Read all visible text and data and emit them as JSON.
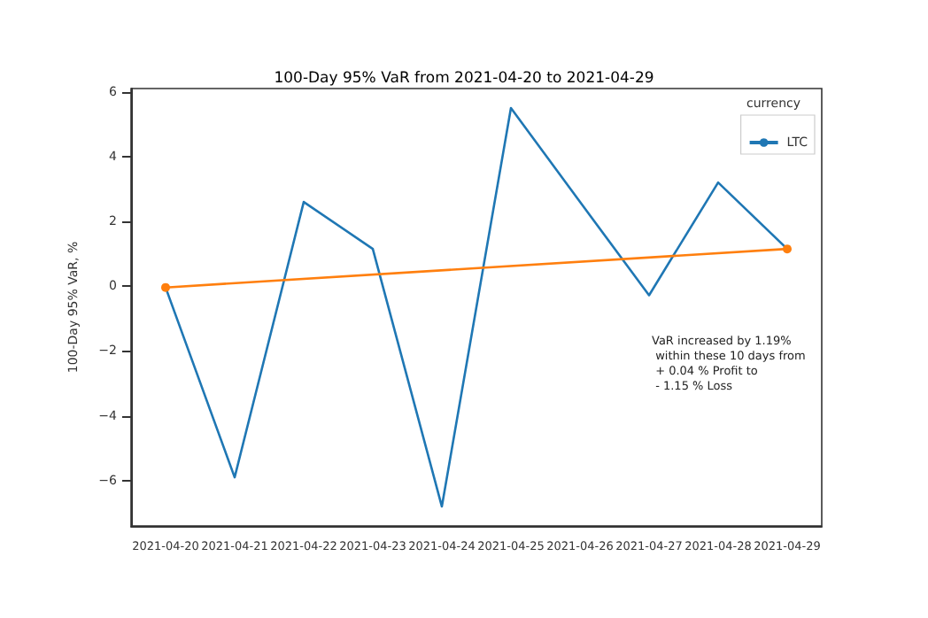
{
  "chart_data": {
    "type": "line",
    "title": "100-Day 95% VaR from 2021-04-20 to 2021-04-29",
    "ylabel": "100-Day 95% VaR, %",
    "legend_title": "currency",
    "legend": "top right",
    "grid": false,
    "categories": [
      "2021-04-20",
      "2021-04-21",
      "2021-04-22",
      "2021-04-23",
      "2021-04-24",
      "2021-04-25",
      "2021-04-26",
      "2021-04-27",
      "2021-04-28",
      "2021-04-29"
    ],
    "series": [
      {
        "name": "LTC",
        "color": "#1f77b4",
        "marker": "none",
        "values": [
          -0.04,
          -5.9,
          2.6,
          1.15,
          -6.8,
          5.5,
          2.6,
          -0.28,
          3.2,
          1.15
        ]
      },
      {
        "type": "line",
        "color": "#ff7f0e",
        "marker": "circle",
        "values": [
          -0.04,
          null,
          null,
          null,
          null,
          null,
          null,
          null,
          null,
          1.15
        ]
      }
    ],
    "ylim": [
      -7.4,
      6.1
    ],
    "yticks": [
      -6,
      -4,
      -2,
      0,
      2,
      4,
      6
    ],
    "annotations": [
      "VaR increased by 1.19%\n within these 10 days from\n + 0.04 % Profit to\n - 1.15 % Loss"
    ]
  }
}
